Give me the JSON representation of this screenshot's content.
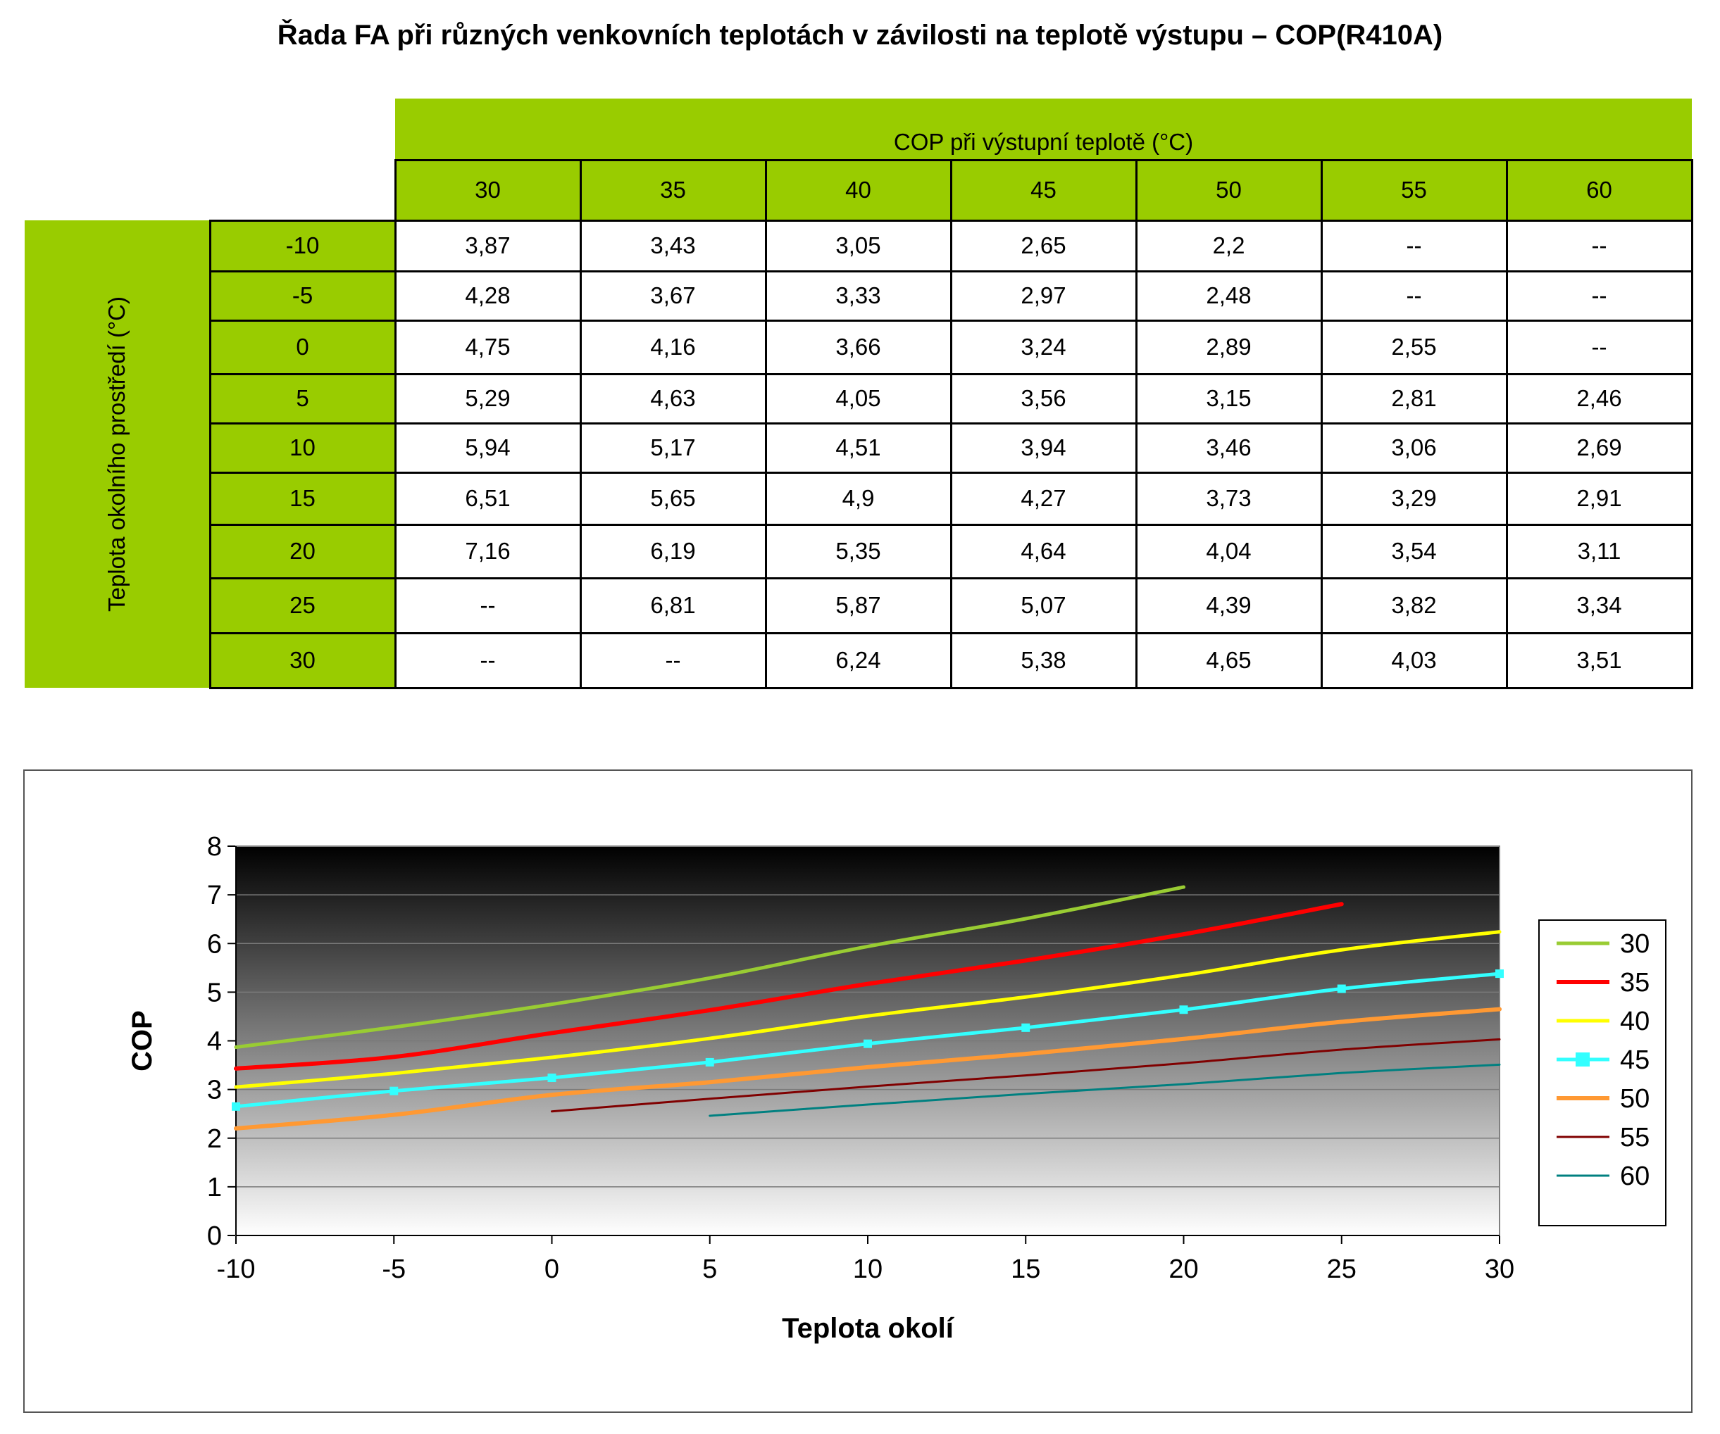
{
  "title": "Řada FA  při různých venkovních teplotách v závilosti na teplotě výstupu – COP(R410A)",
  "table": {
    "column_group_title": "COP při výstupní teplotě (°C)",
    "row_group_title": "Teplota okolního prostředí (°C)",
    "columns": [
      "30",
      "35",
      "40",
      "45",
      "50",
      "55",
      "60"
    ],
    "rows": [
      {
        "label": "-10",
        "cells": [
          "3,87",
          "3,43",
          "3,05",
          "2,65",
          "2,2",
          "--",
          "--"
        ]
      },
      {
        "label": "-5",
        "cells": [
          "4,28",
          "3,67",
          "3,33",
          "2,97",
          "2,48",
          "--",
          "--"
        ]
      },
      {
        "label": "0",
        "cells": [
          "4,75",
          "4,16",
          "3,66",
          "3,24",
          "2,89",
          "2,55",
          "--"
        ]
      },
      {
        "label": "5",
        "cells": [
          "5,29",
          "4,63",
          "4,05",
          "3,56",
          "3,15",
          "2,81",
          "2,46"
        ]
      },
      {
        "label": "10",
        "cells": [
          "5,94",
          "5,17",
          "4,51",
          "3,94",
          "3,46",
          "3,06",
          "2,69"
        ]
      },
      {
        "label": "15",
        "cells": [
          "6,51",
          "5,65",
          "4,9",
          "4,27",
          "3,73",
          "3,29",
          "2,91"
        ]
      },
      {
        "label": "20",
        "cells": [
          "7,16",
          "6,19",
          "5,35",
          "4,64",
          "4,04",
          "3,54",
          "3,11"
        ]
      },
      {
        "label": "25",
        "cells": [
          "--",
          "6,81",
          "5,87",
          "5,07",
          "4,39",
          "3,82",
          "3,34"
        ]
      },
      {
        "label": "30",
        "cells": [
          "--",
          "--",
          "6,24",
          "5,38",
          "4,65",
          "4,03",
          "3,51"
        ]
      }
    ]
  },
  "colors": {
    "header_green": "#99cc00",
    "series": {
      "30": "#99cc33",
      "35": "#ff0000",
      "40": "#ffff00",
      "45": "#33ffff",
      "50": "#ff9933",
      "55": "#800000",
      "60": "#008080"
    }
  },
  "chart_data": {
    "type": "line",
    "xlabel": "Teplota okolí",
    "ylabel": "COP",
    "xlim": [
      -10,
      30
    ],
    "ylim": [
      0,
      8
    ],
    "x_ticks": [
      "-10",
      "-5",
      "0",
      "5",
      "10",
      "15",
      "20",
      "25",
      "30"
    ],
    "y_ticks": [
      "0",
      "1",
      "2",
      "3",
      "4",
      "5",
      "6",
      "7",
      "8"
    ],
    "grid": "horizontal",
    "legend": "right",
    "background": "vertical gradient black to white",
    "x": [
      -10,
      -5,
      0,
      5,
      10,
      15,
      20,
      25,
      30
    ],
    "series": [
      {
        "name": "30",
        "color": "#99cc33",
        "values": [
          3.87,
          4.28,
          4.75,
          5.29,
          5.94,
          6.51,
          7.16,
          null,
          null
        ]
      },
      {
        "name": "35",
        "color": "#ff0000",
        "values": [
          3.43,
          3.67,
          4.16,
          4.63,
          5.17,
          5.65,
          6.19,
          6.81,
          null
        ]
      },
      {
        "name": "40",
        "color": "#ffff00",
        "values": [
          3.05,
          3.33,
          3.66,
          4.05,
          4.51,
          4.9,
          5.35,
          5.87,
          6.24
        ]
      },
      {
        "name": "45",
        "color": "#33ffff",
        "marker": "square",
        "values": [
          2.65,
          2.97,
          3.24,
          3.56,
          3.94,
          4.27,
          4.64,
          5.07,
          5.38
        ]
      },
      {
        "name": "50",
        "color": "#ff9933",
        "values": [
          2.2,
          2.48,
          2.89,
          3.15,
          3.46,
          3.73,
          4.04,
          4.39,
          4.65
        ]
      },
      {
        "name": "55",
        "color": "#800000",
        "values": [
          null,
          null,
          2.55,
          2.81,
          3.06,
          3.29,
          3.54,
          3.82,
          4.03
        ]
      },
      {
        "name": "60",
        "color": "#008080",
        "values": [
          null,
          null,
          null,
          2.46,
          2.69,
          2.91,
          3.11,
          3.34,
          3.51
        ]
      }
    ]
  }
}
